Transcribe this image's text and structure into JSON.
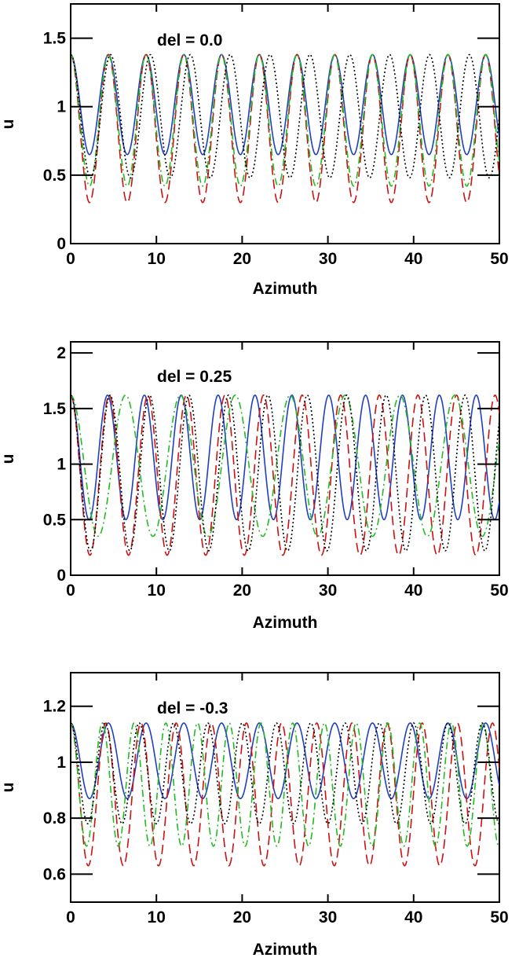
{
  "chart_data": [
    {
      "type": "line",
      "annotation": "del = 0.0",
      "xlabel": "Azimuth",
      "ylabel": "u",
      "xlim": [
        0,
        50
      ],
      "ylim": [
        0,
        1.75
      ],
      "xticks": [
        0,
        10,
        20,
        30,
        40,
        50
      ],
      "xtick_labels": [
        "0",
        "10",
        "20",
        "30",
        "40",
        "50"
      ],
      "yticks": [
        0,
        0.5,
        1,
        1.5
      ],
      "ytick_labels": [
        "0",
        "0.5",
        "1",
        "1.5"
      ],
      "grid": false,
      "series": [
        {
          "color": "#1f3fbf",
          "dash": "solid",
          "max": 1.38,
          "min": 0.65,
          "period": 4.4,
          "phase": 0.0
        },
        {
          "color": "#cc1111",
          "dash": "long-dash",
          "max": 1.38,
          "min": 0.3,
          "period": 4.4,
          "phase": 0.0
        },
        {
          "color": "#22bb22",
          "dash": "dash-dot",
          "max": 1.38,
          "min": 0.42,
          "period": 4.4,
          "phase": 0.0
        },
        {
          "color": "#000000",
          "dash": "dotted",
          "max": 1.38,
          "min": 0.48,
          "period": 4.65,
          "phase": 0.0
        }
      ]
    },
    {
      "type": "line",
      "annotation": "del = 0.25",
      "xlabel": "Azimuth",
      "ylabel": "u",
      "xlim": [
        0,
        50
      ],
      "ylim": [
        0,
        2.1
      ],
      "xticks": [
        0,
        10,
        20,
        30,
        40,
        50
      ],
      "xtick_labels": [
        "0",
        "10",
        "20",
        "30",
        "40",
        "50"
      ],
      "yticks": [
        0,
        0.5,
        1,
        1.5,
        2
      ],
      "ytick_labels": [
        "0",
        "0.5",
        "1",
        "1.5",
        "2"
      ],
      "grid": false,
      "series": [
        {
          "color": "#1f3fbf",
          "dash": "solid",
          "max": 1.62,
          "min": 0.5,
          "period": 4.3,
          "phase": 0.0
        },
        {
          "color": "#cc1111",
          "dash": "long-dash",
          "max": 1.62,
          "min": 0.18,
          "period": 4.5,
          "phase": 0.0
        },
        {
          "color": "#22bb22",
          "dash": "dash-dot",
          "max": 1.62,
          "min": 0.35,
          "period": 6.4,
          "phase": 0.0
        },
        {
          "color": "#000000",
          "dash": "dotted",
          "max": 1.62,
          "min": 0.22,
          "period": 4.6,
          "phase": 0.0
        }
      ]
    },
    {
      "type": "line",
      "annotation": "del = -0.3",
      "xlabel": "Azimuth",
      "ylabel": "u",
      "xlim": [
        0,
        50
      ],
      "ylim": [
        0.5,
        1.32
      ],
      "xticks": [
        0,
        10,
        20,
        30,
        40,
        50
      ],
      "xtick_labels": [
        "0",
        "10",
        "20",
        "30",
        "40",
        "50"
      ],
      "yticks": [
        0.6,
        0.8,
        1,
        1.2
      ],
      "ytick_labels": [
        "0.6",
        "0.8",
        "1",
        "1.2"
      ],
      "grid": false,
      "series": [
        {
          "color": "#1f3fbf",
          "dash": "solid",
          "max": 1.14,
          "min": 0.87,
          "period": 4.4,
          "phase": 0.0
        },
        {
          "color": "#cc1111",
          "dash": "long-dash",
          "max": 1.14,
          "min": 0.63,
          "period": 4.1,
          "phase": 0.0
        },
        {
          "color": "#22bb22",
          "dash": "dash-dot",
          "max": 1.14,
          "min": 0.7,
          "period": 3.7,
          "phase": 0.0
        },
        {
          "color": "#000000",
          "dash": "dotted",
          "max": 1.14,
          "min": 0.78,
          "period": 4.0,
          "phase": 0.0
        }
      ]
    }
  ]
}
